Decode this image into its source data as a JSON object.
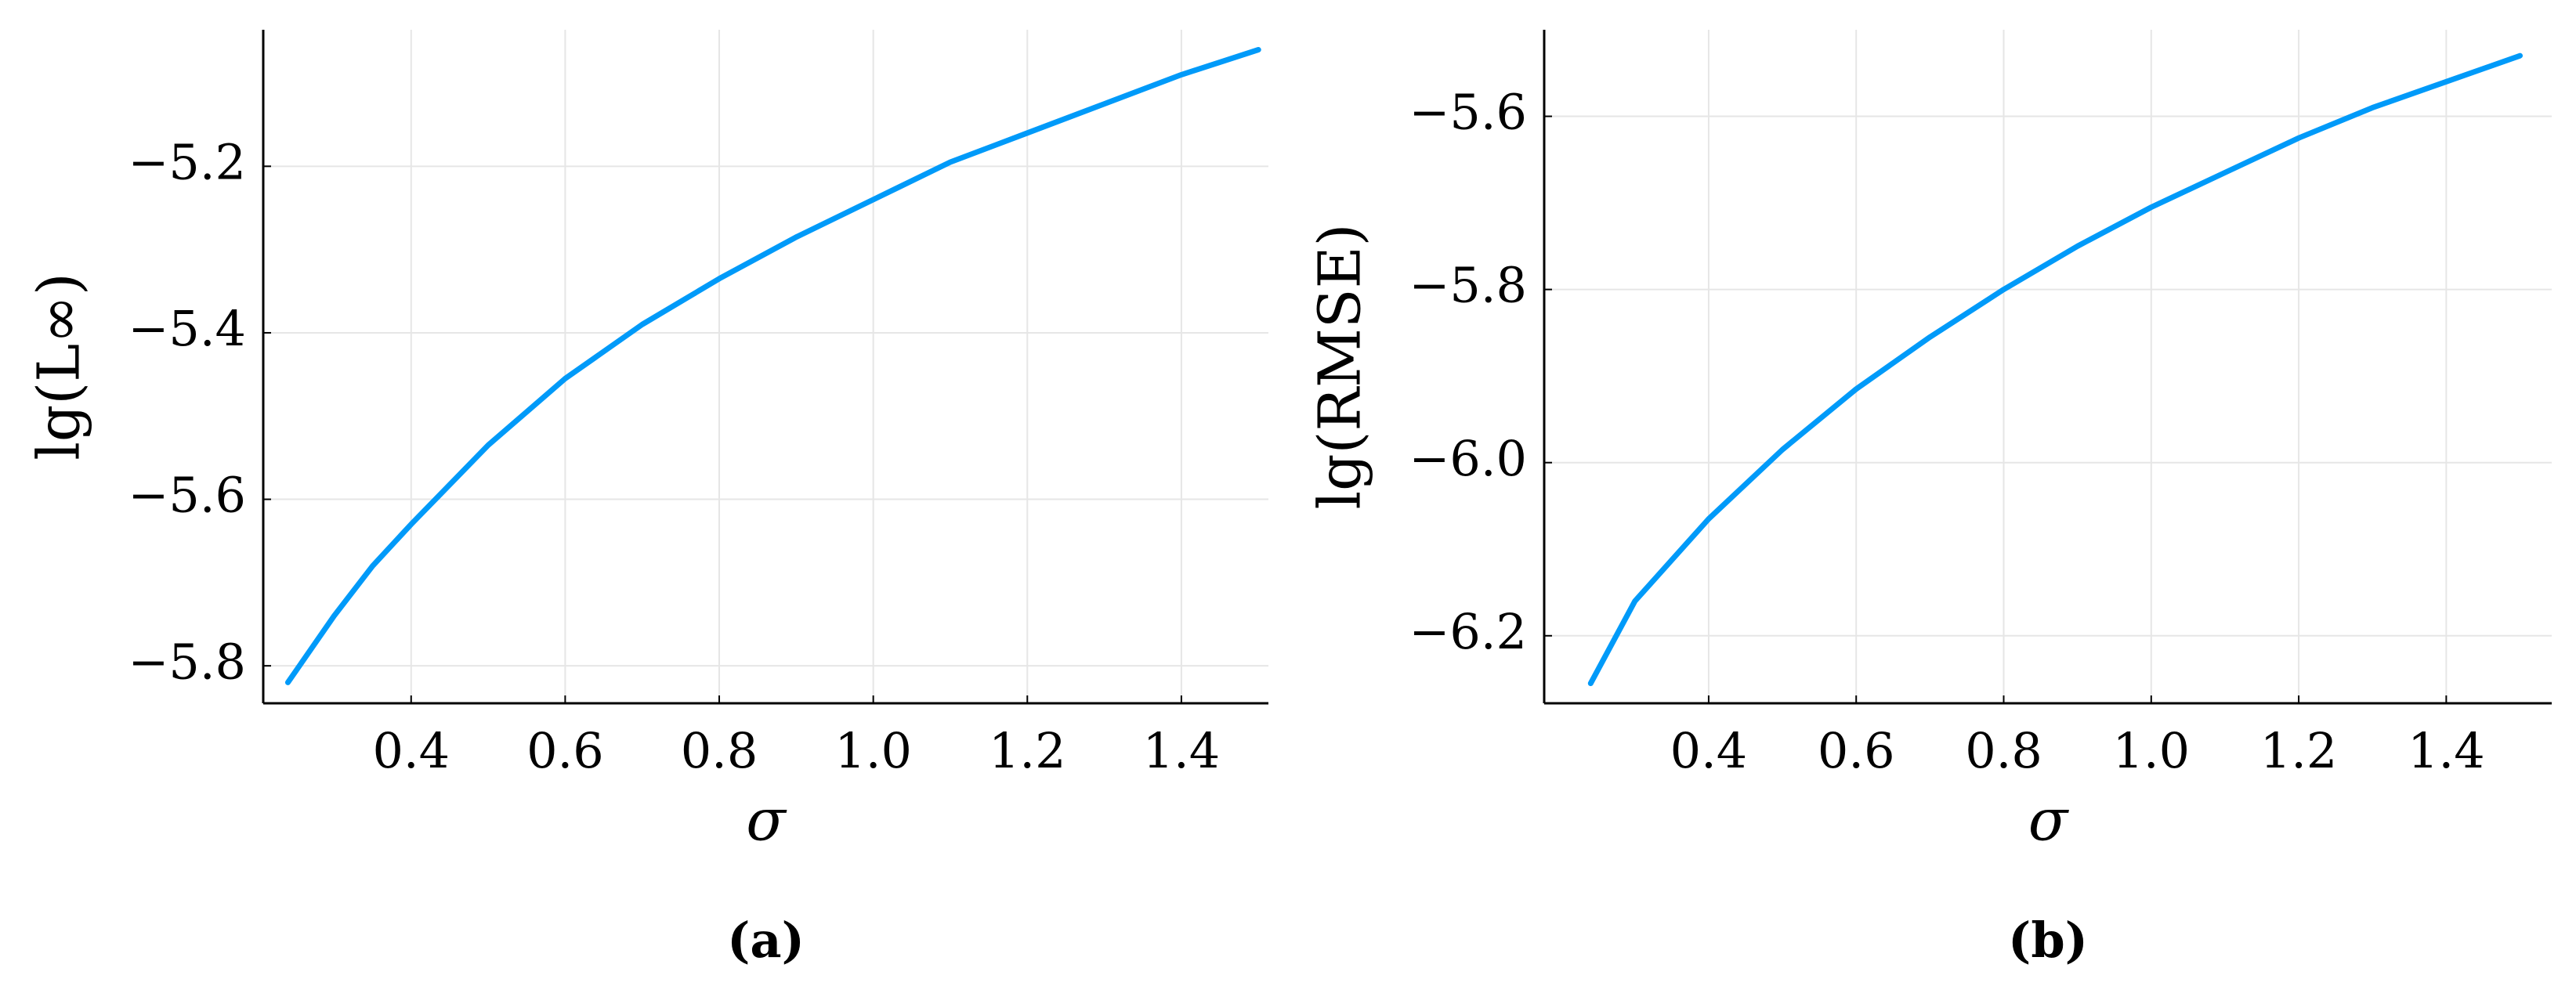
{
  "chart_data": [
    {
      "type": "line",
      "caption": "(a)",
      "xlabel": "σ",
      "ylabel": "lg(L∞)",
      "xlim": [
        0.208,
        1.513
      ],
      "ylim": [
        -5.845,
        -5.036
      ],
      "xticks": [
        0.4,
        0.6,
        0.8,
        {
          "value": 1.0,
          "label": "1.0"
        },
        1.2,
        1.4
      ],
      "yticks": [
        {
          "value": -5.8,
          "label": "−5.8"
        },
        {
          "value": -5.6,
          "label": "−5.6"
        },
        {
          "value": -5.4,
          "label": "−5.4"
        },
        {
          "value": -5.2,
          "label": "−5.2"
        }
      ],
      "grid": true,
      "x": [
        0.24,
        0.3,
        0.35,
        0.4,
        0.5,
        0.6,
        0.7,
        0.8,
        0.9,
        1.0,
        1.1,
        1.2,
        1.3,
        1.4,
        1.5
      ],
      "series": [
        {
          "color": "#009af9",
          "values": [
            -5.82,
            -5.74,
            -5.68,
            -5.63,
            -5.535,
            -5.455,
            -5.39,
            -5.335,
            -5.285,
            -5.24,
            -5.195,
            -5.16,
            -5.125,
            -5.09,
            -5.06
          ]
        }
      ]
    },
    {
      "type": "line",
      "caption": "(b)",
      "xlabel": "σ",
      "ylabel": "lg(RMSE)",
      "xlim": [
        0.177,
        1.543
      ],
      "ylim": [
        -6.278,
        -5.5
      ],
      "xticks": [
        0.4,
        0.6,
        0.8,
        {
          "value": 1.0,
          "label": "1.0"
        },
        1.2,
        1.4
      ],
      "yticks": [
        {
          "value": -6.2,
          "label": "−6.2"
        },
        {
          "value": -6.0,
          "label": "−6.0"
        },
        {
          "value": -5.8,
          "label": "−5.8"
        },
        {
          "value": -5.6,
          "label": "−5.6"
        }
      ],
      "grid": true,
      "x": [
        0.24,
        0.3,
        0.4,
        0.5,
        0.6,
        0.7,
        0.8,
        0.9,
        1.0,
        1.1,
        1.2,
        1.3,
        1.4,
        1.5
      ],
      "series": [
        {
          "color": "#009af9",
          "values": [
            -6.255,
            -6.16,
            -6.065,
            -5.985,
            -5.915,
            -5.855,
            -5.8,
            -5.75,
            -5.705,
            -5.665,
            -5.625,
            -5.59,
            -5.56,
            -5.53
          ]
        }
      ]
    }
  ]
}
